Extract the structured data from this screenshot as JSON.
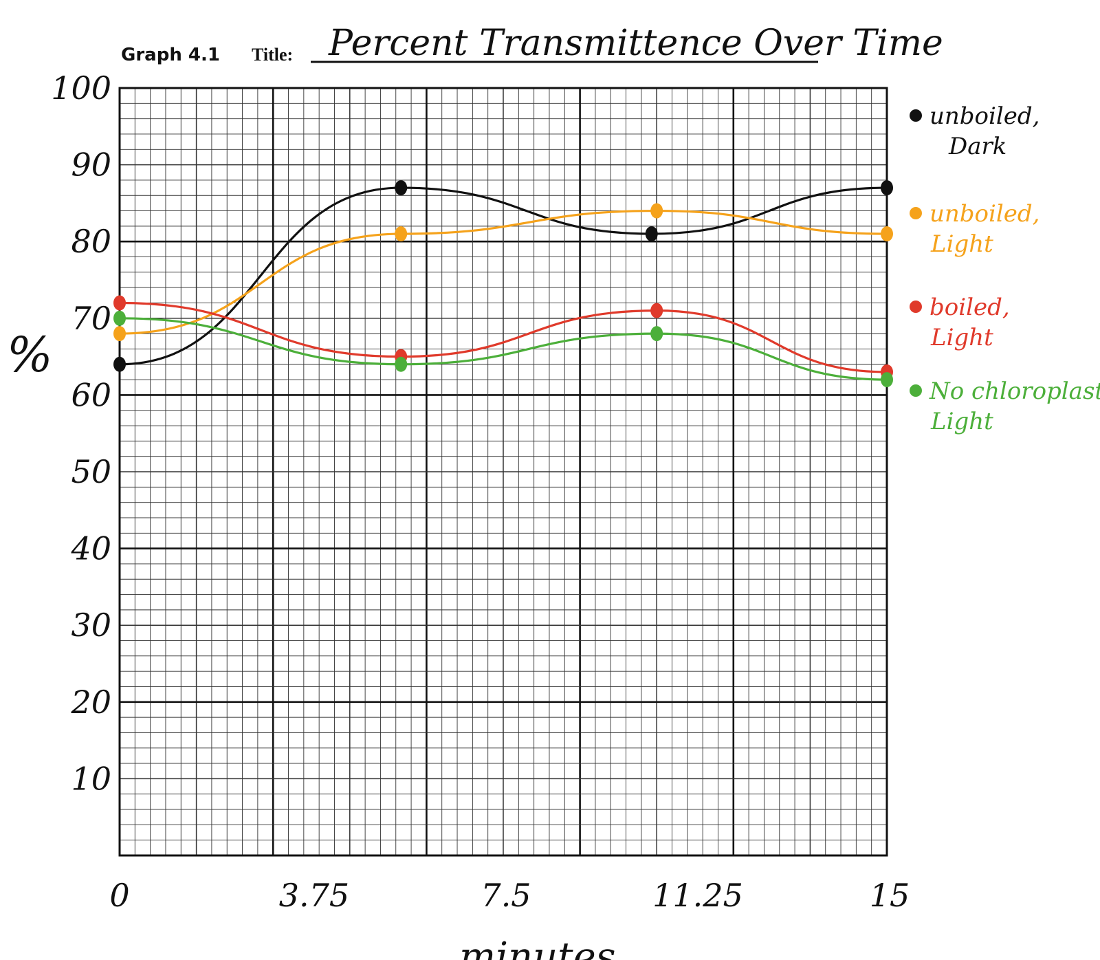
{
  "header": {
    "graph_label": "Graph 4.1",
    "title_label": "Title:"
  },
  "chart_data": {
    "type": "line",
    "title": "Percent Transmittence Over Time",
    "xlabel": "minutes",
    "ylabel": "%",
    "x_ticks": [
      "0",
      "3.75",
      "7.5",
      "11.25",
      "15"
    ],
    "y_ticks": [
      "100",
      "90",
      "80",
      "70",
      "60",
      "50",
      "40",
      "30",
      "20",
      "10"
    ],
    "xlim": [
      0,
      15
    ],
    "ylim": [
      0,
      100
    ],
    "grid": true,
    "legend_position": "right",
    "series": [
      {
        "name": "unboiled, Dark",
        "color": "#111111",
        "x": [
          0,
          5.5,
          10.4,
          15
        ],
        "y": [
          64,
          87,
          81,
          87
        ]
      },
      {
        "name": "unboiled, Light",
        "color": "#f5a21b",
        "x": [
          0,
          5.5,
          10.5,
          15
        ],
        "y": [
          68,
          81,
          84,
          81
        ]
      },
      {
        "name": "boiled, Light",
        "color": "#e03a2b",
        "x": [
          0,
          5.5,
          10.5,
          15
        ],
        "y": [
          72,
          65,
          71,
          63
        ]
      },
      {
        "name": "No chloroplasts, Light",
        "color": "#4caf3a",
        "x": [
          0,
          5.5,
          10.5,
          15
        ],
        "y": [
          70,
          64,
          68,
          62
        ]
      }
    ]
  }
}
